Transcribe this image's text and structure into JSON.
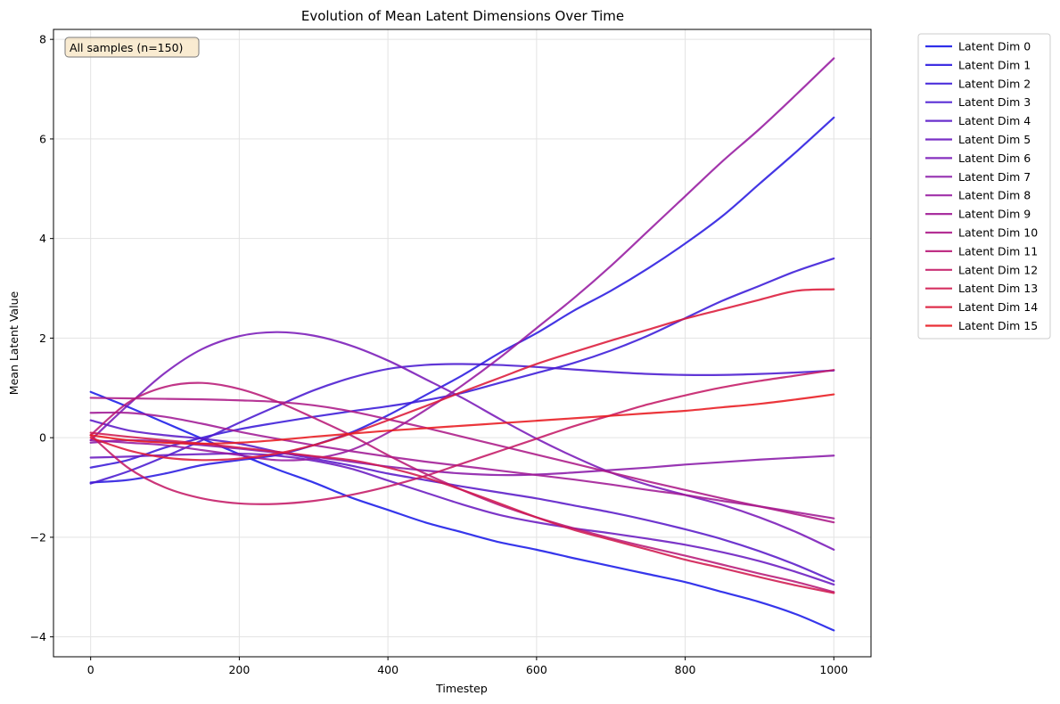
{
  "chart_data": {
    "type": "line",
    "title": "Evolution of Mean Latent Dimensions Over Time",
    "xlabel": "Timestep",
    "ylabel": "Mean Latent Value",
    "xlim": [
      -50,
      1050
    ],
    "ylim": [
      -4.4,
      8.2
    ],
    "xticks": [
      0,
      200,
      400,
      600,
      800,
      1000
    ],
    "xtick_labels": [
      "0",
      "200",
      "400",
      "600",
      "800",
      "1000"
    ],
    "yticks": [
      -4,
      -2,
      0,
      2,
      4,
      6,
      8
    ],
    "ytick_labels": [
      "−4",
      "−2",
      "0",
      "2",
      "4",
      "6",
      "8"
    ],
    "grid": true,
    "legend_position": "outside-right",
    "annotation": "All samples (n=150)",
    "annotation_position": "top-left",
    "x": [
      0,
      50,
      100,
      150,
      200,
      250,
      300,
      350,
      400,
      450,
      500,
      550,
      600,
      650,
      700,
      750,
      800,
      850,
      900,
      950,
      1000
    ],
    "series": [
      {
        "name": "Latent Dim 0",
        "color": "#1a1ae8",
        "values": [
          0.92,
          0.62,
          0.3,
          -0.02,
          -0.33,
          -0.63,
          -0.9,
          -1.2,
          -1.45,
          -1.7,
          -1.9,
          -2.1,
          -2.25,
          -2.42,
          -2.58,
          -2.74,
          -2.9,
          -3.1,
          -3.3,
          -3.55,
          -3.87
        ]
      },
      {
        "name": "Latent Dim 1",
        "color": "#2a1ae0",
        "values": [
          -0.9,
          -0.85,
          -0.72,
          -0.55,
          -0.45,
          -0.35,
          -0.15,
          0.1,
          0.45,
          0.85,
          1.25,
          1.7,
          2.1,
          2.55,
          2.95,
          3.4,
          3.9,
          4.45,
          5.1,
          5.75,
          6.43
        ]
      },
      {
        "name": "Latent Dim 2",
        "color": "#3a1ad8",
        "values": [
          -0.6,
          -0.45,
          -0.2,
          0.0,
          0.17,
          0.3,
          0.42,
          0.53,
          0.63,
          0.75,
          0.9,
          1.1,
          1.3,
          1.5,
          1.75,
          2.05,
          2.4,
          2.75,
          3.05,
          3.35,
          3.6
        ]
      },
      {
        "name": "Latent Dim 3",
        "color": "#4a1ad0",
        "values": [
          -0.92,
          -0.68,
          -0.38,
          -0.05,
          0.3,
          0.63,
          0.95,
          1.2,
          1.38,
          1.46,
          1.48,
          1.46,
          1.42,
          1.37,
          1.32,
          1.28,
          1.26,
          1.26,
          1.28,
          1.31,
          1.35
        ]
      },
      {
        "name": "Latent Dim 4",
        "color": "#5a1ac8",
        "values": [
          0.35,
          0.15,
          0.05,
          -0.02,
          -0.12,
          -0.28,
          -0.42,
          -0.56,
          -0.72,
          -0.85,
          -0.98,
          -1.1,
          -1.22,
          -1.36,
          -1.5,
          -1.66,
          -1.84,
          -2.04,
          -2.28,
          -2.56,
          -2.88
        ]
      },
      {
        "name": "Latent Dim 5",
        "color": "#6a1ac0",
        "values": [
          -0.4,
          -0.38,
          -0.35,
          -0.33,
          -0.32,
          -0.36,
          -0.46,
          -0.62,
          -0.86,
          -1.1,
          -1.34,
          -1.55,
          -1.7,
          -1.82,
          -1.92,
          -2.03,
          -2.15,
          -2.3,
          -2.48,
          -2.7,
          -2.95
        ]
      },
      {
        "name": "Latent Dim 6",
        "color": "#7a1ab8",
        "values": [
          -0.05,
          0.65,
          1.3,
          1.78,
          2.04,
          2.12,
          2.05,
          1.85,
          1.55,
          1.18,
          0.8,
          0.38,
          -0.02,
          -0.38,
          -0.7,
          -0.95,
          -1.15,
          -1.35,
          -1.6,
          -1.9,
          -2.25
        ]
      },
      {
        "name": "Latent Dim 7",
        "color": "#8a1aa8",
        "values": [
          -0.1,
          -0.05,
          -0.08,
          -0.15,
          -0.22,
          -0.3,
          -0.38,
          -0.48,
          -0.58,
          -0.66,
          -0.72,
          -0.75,
          -0.74,
          -0.7,
          -0.65,
          -0.6,
          -0.54,
          -0.49,
          -0.44,
          -0.4,
          -0.36
        ]
      },
      {
        "name": "Latent Dim 8",
        "color": "#961aa0",
        "values": [
          -0.05,
          -0.1,
          -0.15,
          -0.25,
          -0.35,
          -0.45,
          -0.42,
          -0.25,
          0.1,
          0.55,
          1.05,
          1.6,
          2.2,
          2.8,
          3.45,
          4.15,
          4.85,
          5.55,
          6.2,
          6.9,
          7.62
        ]
      },
      {
        "name": "Latent Dim 9",
        "color": "#a01a95",
        "values": [
          0.5,
          0.5,
          0.42,
          0.28,
          0.12,
          -0.02,
          -0.15,
          -0.27,
          -0.38,
          -0.48,
          -0.57,
          -0.66,
          -0.75,
          -0.84,
          -0.94,
          -1.05,
          -1.15,
          -1.27,
          -1.38,
          -1.5,
          -1.62
        ]
      },
      {
        "name": "Latent Dim 10",
        "color": "#ac1a88",
        "values": [
          0.8,
          0.79,
          0.78,
          0.77,
          0.75,
          0.72,
          0.65,
          0.53,
          0.37,
          0.2,
          0.02,
          -0.16,
          -0.34,
          -0.52,
          -0.7,
          -0.88,
          -1.05,
          -1.22,
          -1.38,
          -1.54,
          -1.7
        ]
      },
      {
        "name": "Latent Dim 11",
        "color": "#b81a78",
        "values": [
          0.05,
          0.7,
          1.02,
          1.1,
          0.98,
          0.73,
          0.4,
          0.05,
          -0.35,
          -0.72,
          -1.05,
          -1.35,
          -1.6,
          -1.82,
          -2.02,
          -2.2,
          -2.37,
          -2.55,
          -2.73,
          -2.9,
          -3.1
        ]
      },
      {
        "name": "Latent Dim 12",
        "color": "#c41a66",
        "values": [
          0.05,
          -0.6,
          -1.0,
          -1.22,
          -1.32,
          -1.33,
          -1.27,
          -1.15,
          -0.98,
          -0.77,
          -0.52,
          -0.27,
          -0.02,
          0.23,
          0.45,
          0.67,
          0.85,
          1.01,
          1.14,
          1.25,
          1.36
        ]
      },
      {
        "name": "Latent Dim 13",
        "color": "#d01a50",
        "values": [
          0.1,
          0.02,
          -0.05,
          -0.12,
          -0.2,
          -0.28,
          -0.37,
          -0.45,
          -0.6,
          -0.8,
          -1.05,
          -1.32,
          -1.6,
          -1.85,
          -2.05,
          -2.25,
          -2.45,
          -2.62,
          -2.8,
          -2.97,
          -3.12
        ]
      },
      {
        "name": "Latent Dim 14",
        "color": "#dc1a3a",
        "values": [
          0.0,
          -0.25,
          -0.4,
          -0.45,
          -0.42,
          -0.32,
          -0.15,
          0.08,
          0.35,
          0.63,
          0.92,
          1.2,
          1.48,
          1.72,
          1.95,
          2.17,
          2.39,
          2.58,
          2.77,
          2.95,
          2.98
        ]
      },
      {
        "name": "Latent Dim 15",
        "color": "#e81a20",
        "values": [
          0.05,
          -0.05,
          -0.1,
          -0.12,
          -0.1,
          -0.05,
          0.02,
          0.08,
          0.14,
          0.19,
          0.24,
          0.29,
          0.34,
          0.39,
          0.44,
          0.49,
          0.54,
          0.61,
          0.68,
          0.77,
          0.87
        ]
      }
    ]
  }
}
